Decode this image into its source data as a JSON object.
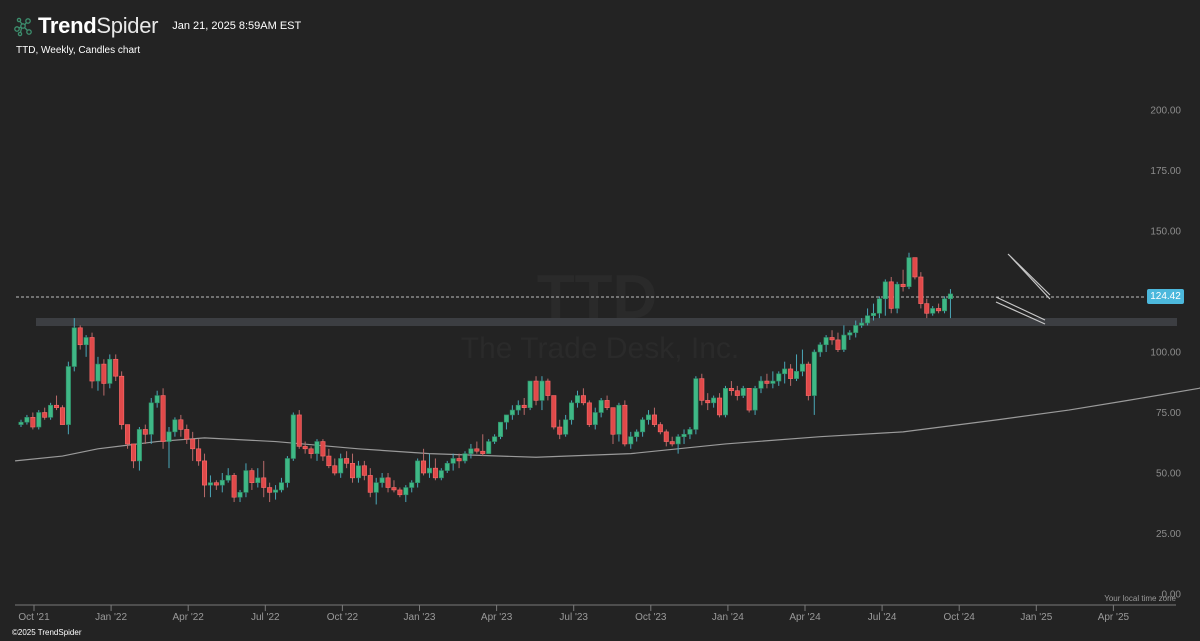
{
  "header": {
    "brand_bold": "Trend",
    "brand_light": "Spider",
    "timestamp": "Jan 21, 2025 8:59AM EST",
    "subtitle": "TTD, Weekly, Candles chart"
  },
  "watermark": {
    "symbol": "TTD",
    "company": "The Trade Desk, Inc."
  },
  "footer": {
    "copyright": "©2025 TrendSpider",
    "timezone_note": "Your local time zone"
  },
  "last_price": {
    "label": "124.42",
    "color": "#4cb8dc"
  },
  "colors": {
    "background": "#232323",
    "up": "#3fb886",
    "down": "#e04a4a",
    "sma": "#9a9a9a",
    "zone": "#3c3e42",
    "channel": "#bdbdbd"
  },
  "chart_data": {
    "type": "candlestick",
    "title": "TTD, Weekly, Candles chart",
    "symbol": "TTD",
    "timeframe": "Weekly",
    "ylim": [
      0,
      200
    ],
    "yticks": [
      "200.00",
      "175.00",
      "150.00",
      "100.00",
      "75.00",
      "50.00",
      "25.00",
      "0.00"
    ],
    "xticks": [
      "Oct '21",
      "Jan '22",
      "Apr '22",
      "Jul '22",
      "Oct '22",
      "Jan '23",
      "Apr '23",
      "Jul '23",
      "Oct '23",
      "Jan '24",
      "Apr '24",
      "Jul '24",
      "Oct '24",
      "Jan '25",
      "Apr '25"
    ],
    "last_price": 124.42,
    "support_zone": [
      111.5,
      114.5
    ],
    "annotations": [
      "Horizontal support zone ~113",
      "Descending channel (bull flag) Dec 2024 – Jan 2025",
      "Long-term moving average rising from ~55 to ~90"
    ],
    "sma_points": [
      [
        0,
        55
      ],
      [
        8,
        57
      ],
      [
        14,
        60
      ],
      [
        24,
        63
      ],
      [
        32,
        64.5
      ],
      [
        44,
        63
      ],
      [
        58,
        60
      ],
      [
        70,
        58
      ],
      [
        88,
        56.5
      ],
      [
        104,
        58
      ],
      [
        120,
        62
      ],
      [
        136,
        65
      ],
      [
        150,
        67
      ],
      [
        166,
        72
      ],
      [
        178,
        76
      ],
      [
        188,
        80
      ],
      [
        200,
        85
      ],
      [
        206,
        90
      ]
    ],
    "ohlc": [
      [
        70,
        72,
        69,
        71
      ],
      [
        71,
        74,
        70,
        73
      ],
      [
        73,
        75,
        68,
        69
      ],
      [
        69,
        76,
        68,
        75
      ],
      [
        75,
        77,
        72,
        73
      ],
      [
        73,
        79,
        72,
        78
      ],
      [
        78,
        82,
        76,
        77
      ],
      [
        77,
        78,
        70,
        70
      ],
      [
        70,
        96,
        66,
        94
      ],
      [
        94,
        114,
        92,
        110
      ],
      [
        110,
        111,
        101,
        103
      ],
      [
        103,
        107,
        98,
        106
      ],
      [
        106,
        108,
        85,
        88
      ],
      [
        88,
        98,
        84,
        95
      ],
      [
        95,
        97,
        82,
        87
      ],
      [
        87,
        99,
        85,
        97
      ],
      [
        97,
        99,
        88,
        90
      ],
      [
        90,
        92,
        68,
        70
      ],
      [
        70,
        70,
        60,
        62
      ],
      [
        62,
        60,
        52,
        55
      ],
      [
        55,
        69,
        51,
        68
      ],
      [
        68,
        70,
        62,
        66
      ],
      [
        66,
        81,
        62,
        79
      ],
      [
        79,
        84,
        77,
        82
      ],
      [
        82,
        85,
        60,
        63
      ],
      [
        63,
        69,
        52,
        67
      ],
      [
        67,
        73,
        65,
        72
      ],
      [
        72,
        74,
        65,
        68
      ],
      [
        68,
        70,
        62,
        64
      ],
      [
        64,
        67,
        55,
        60
      ],
      [
        60,
        64,
        53,
        55
      ],
      [
        55,
        58,
        40,
        45
      ],
      [
        45,
        49,
        40,
        46
      ],
      [
        46,
        47,
        43,
        45
      ],
      [
        45,
        50,
        42,
        47
      ],
      [
        47,
        52,
        46,
        49
      ],
      [
        49,
        50,
        38,
        40
      ],
      [
        40,
        43,
        38,
        42
      ],
      [
        42,
        54,
        40,
        51
      ],
      [
        51,
        52,
        43,
        46
      ],
      [
        46,
        52,
        44,
        48
      ],
      [
        48,
        55,
        40,
        44
      ],
      [
        44,
        46,
        38,
        42
      ],
      [
        42,
        45,
        39,
        43
      ],
      [
        43,
        48,
        42,
        46
      ],
      [
        46,
        57,
        44,
        56
      ],
      [
        56,
        75,
        55,
        74
      ],
      [
        74,
        76,
        60,
        61
      ],
      [
        61,
        63,
        58,
        60
      ],
      [
        60,
        61,
        56,
        58
      ],
      [
        58,
        64,
        55,
        63
      ],
      [
        63,
        64,
        55,
        57
      ],
      [
        57,
        60,
        52,
        53
      ],
      [
        53,
        56,
        49,
        50
      ],
      [
        50,
        58,
        48,
        56
      ],
      [
        56,
        59,
        52,
        54
      ],
      [
        54,
        58,
        46,
        48
      ],
      [
        48,
        55,
        46,
        53
      ],
      [
        53,
        55,
        47,
        49
      ],
      [
        49,
        52,
        40,
        42
      ],
      [
        42,
        48,
        37,
        46
      ],
      [
        46,
        50,
        44,
        48
      ],
      [
        48,
        50,
        42,
        44
      ],
      [
        44,
        47,
        42,
        43
      ],
      [
        43,
        44,
        40,
        41
      ],
      [
        41,
        45,
        38,
        44
      ],
      [
        44,
        47,
        42,
        46
      ],
      [
        46,
        56,
        44,
        55
      ],
      [
        55,
        60,
        49,
        50
      ],
      [
        50,
        58,
        48,
        52
      ],
      [
        52,
        56,
        47,
        48
      ],
      [
        48,
        52,
        47,
        51
      ],
      [
        51,
        55,
        50,
        54
      ],
      [
        54,
        58,
        51,
        56
      ],
      [
        56,
        58,
        52,
        55
      ],
      [
        55,
        59,
        54,
        58
      ],
      [
        58,
        62,
        56,
        60
      ],
      [
        60,
        63,
        58,
        59
      ],
      [
        59,
        66,
        57,
        58
      ],
      [
        58,
        64,
        58,
        63
      ],
      [
        63,
        66,
        62,
        65
      ],
      [
        65,
        70,
        64,
        71
      ],
      [
        71,
        73,
        68,
        74
      ],
      [
        74,
        78,
        72,
        76
      ],
      [
        76,
        80,
        74,
        78
      ],
      [
        78,
        81,
        74,
        77
      ],
      [
        77,
        88,
        76,
        88
      ],
      [
        88,
        90,
        78,
        80
      ],
      [
        80,
        90,
        76,
        88
      ],
      [
        88,
        89,
        80,
        82
      ],
      [
        82,
        80,
        68,
        69
      ],
      [
        69,
        72,
        64,
        66
      ],
      [
        66,
        74,
        65,
        72
      ],
      [
        72,
        80,
        70,
        79
      ],
      [
        79,
        84,
        77,
        82
      ],
      [
        82,
        85,
        78,
        79
      ],
      [
        79,
        80,
        69,
        70
      ],
      [
        70,
        77,
        68,
        75
      ],
      [
        75,
        81,
        73,
        80
      ],
      [
        80,
        82,
        76,
        77
      ],
      [
        77,
        72,
        62,
        66
      ],
      [
        66,
        79,
        63,
        78
      ],
      [
        78,
        80,
        61,
        62
      ],
      [
        62,
        67,
        60,
        65
      ],
      [
        65,
        68,
        63,
        67
      ],
      [
        67,
        73,
        65,
        72
      ],
      [
        72,
        76,
        70,
        74
      ],
      [
        74,
        77,
        69,
        70
      ],
      [
        70,
        71,
        66,
        67
      ],
      [
        67,
        68,
        61,
        63
      ],
      [
        63,
        65,
        61,
        62
      ],
      [
        62,
        66,
        58,
        65
      ],
      [
        65,
        68,
        62,
        66
      ],
      [
        66,
        69,
        64,
        68
      ],
      [
        68,
        90,
        66,
        89
      ],
      [
        89,
        91,
        78,
        80
      ],
      [
        80,
        83,
        76,
        79
      ],
      [
        79,
        82,
        77,
        81
      ],
      [
        81,
        83,
        73,
        74
      ],
      [
        74,
        86,
        73,
        85
      ],
      [
        85,
        88,
        82,
        84
      ],
      [
        84,
        86,
        80,
        82
      ],
      [
        82,
        86,
        81,
        85
      ],
      [
        85,
        83,
        75,
        76
      ],
      [
        76,
        86,
        74,
        85
      ],
      [
        85,
        90,
        83,
        88
      ],
      [
        88,
        91,
        85,
        87
      ],
      [
        87,
        92,
        85,
        88
      ],
      [
        88,
        92,
        86,
        91
      ],
      [
        91,
        96,
        87,
        93
      ],
      [
        93,
        95,
        86,
        89
      ],
      [
        89,
        99,
        88,
        92
      ],
      [
        92,
        101,
        90,
        95
      ],
      [
        95,
        96,
        80,
        82
      ],
      [
        82,
        101,
        74,
        100
      ],
      [
        100,
        104,
        98,
        103
      ],
      [
        103,
        107,
        100,
        106
      ],
      [
        106,
        109,
        103,
        105
      ],
      [
        105,
        108,
        100,
        101
      ],
      [
        101,
        111,
        100,
        107
      ],
      [
        107,
        109,
        105,
        108
      ],
      [
        108,
        113,
        106,
        111
      ],
      [
        111,
        114,
        110,
        112
      ],
      [
        112,
        118,
        111,
        115
      ],
      [
        115,
        120,
        113,
        116
      ],
      [
        116,
        123,
        114,
        122
      ],
      [
        122,
        130,
        115,
        129
      ],
      [
        129,
        131,
        116,
        118
      ],
      [
        118,
        129,
        116,
        128
      ],
      [
        128,
        134,
        125,
        127
      ],
      [
        127,
        141,
        126,
        139
      ],
      [
        139,
        137,
        130,
        131
      ],
      [
        131,
        133,
        118,
        120
      ],
      [
        120,
        122,
        114,
        116
      ],
      [
        116,
        119,
        115,
        118
      ],
      [
        118,
        120,
        116,
        117
      ],
      [
        117,
        123,
        116,
        122
      ],
      [
        122,
        126,
        114,
        124
      ]
    ]
  }
}
